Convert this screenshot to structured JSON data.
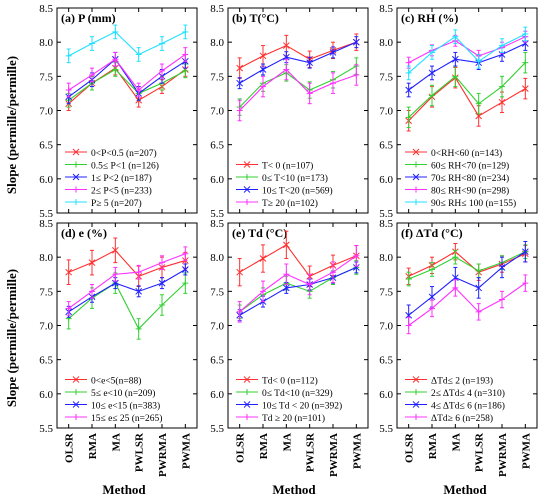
{
  "figure": {
    "ylabel": "Slope (permille/permille)",
    "xlabel": "Method"
  },
  "chart_data": [
    {
      "type": "line",
      "title": "(a) P (mm)",
      "categories": [
        "OLSR",
        "RMA",
        "MA",
        "PWLSR",
        "PWRMA",
        "PWMA"
      ],
      "ylim": [
        5.5,
        8.5
      ],
      "yticks": [
        "5.5",
        "6.0",
        "6.5",
        "7.0",
        "7.5",
        "8.0",
        "8.5"
      ],
      "legend_position": "bottom-right",
      "series": [
        {
          "name": "0<P<0.5 (n=207)",
          "color": "#ff3030",
          "values": [
            7.1,
            7.4,
            7.62,
            7.15,
            7.35,
            7.6
          ],
          "errors": [
            0.1,
            0.1,
            0.1,
            0.1,
            0.1,
            0.1
          ]
        },
        {
          "name": "0.5≤ P<1 (n=126)",
          "color": "#30d030",
          "values": [
            7.15,
            7.4,
            7.6,
            7.25,
            7.4,
            7.58
          ],
          "errors": [
            0.1,
            0.1,
            0.1,
            0.1,
            0.1,
            0.1
          ]
        },
        {
          "name": "1≤ P<2 (n=187)",
          "color": "#2020ff",
          "values": [
            7.2,
            7.45,
            7.75,
            7.25,
            7.5,
            7.72
          ],
          "errors": [
            0.1,
            0.1,
            0.1,
            0.1,
            0.1,
            0.1
          ]
        },
        {
          "name": "2≤ P<5 (n=233)",
          "color": "#ff30ff",
          "values": [
            7.3,
            7.52,
            7.75,
            7.3,
            7.58,
            7.82
          ],
          "errors": [
            0.1,
            0.1,
            0.1,
            0.1,
            0.1,
            0.1
          ]
        },
        {
          "name": "P≥ 5 (n=207)",
          "color": "#20e0ff",
          "values": [
            7.8,
            7.98,
            8.15,
            7.82,
            7.98,
            8.15
          ],
          "errors": [
            0.1,
            0.1,
            0.1,
            0.1,
            0.1,
            0.1
          ]
        }
      ]
    },
    {
      "type": "line",
      "title": "(b) T(°C)",
      "categories": [
        "OLSR",
        "RMA",
        "MA",
        "PWLSR",
        "PWRMA",
        "PWMA"
      ],
      "ylim": [
        5.5,
        8.5
      ],
      "yticks": [
        "5.5",
        "6.0",
        "6.5",
        "7.0",
        "7.5",
        "8.0",
        "8.5"
      ],
      "legend_position": "bottom-right",
      "series": [
        {
          "name": "T< 0 (n=107)",
          "color": "#ff3030",
          "values": [
            7.62,
            7.8,
            7.95,
            7.75,
            7.88,
            8.0
          ],
          "errors": [
            0.15,
            0.15,
            0.15,
            0.12,
            0.12,
            0.12
          ]
        },
        {
          "name": "0≤ T<10 (n=173)",
          "color": "#30d030",
          "values": [
            7.05,
            7.4,
            7.55,
            7.3,
            7.45,
            7.65
          ],
          "errors": [
            0.12,
            0.12,
            0.12,
            0.12,
            0.12,
            0.12
          ]
        },
        {
          "name": "10≤ T<20 (n=569)",
          "color": "#2020ff",
          "values": [
            7.4,
            7.6,
            7.78,
            7.7,
            7.85,
            8.0
          ],
          "errors": [
            0.08,
            0.08,
            0.08,
            0.08,
            0.08,
            0.08
          ]
        },
        {
          "name": "T≥ 20 (n=102)",
          "color": "#ff30ff",
          "values": [
            7.0,
            7.35,
            7.6,
            7.25,
            7.4,
            7.52
          ],
          "errors": [
            0.15,
            0.15,
            0.15,
            0.15,
            0.15,
            0.15
          ]
        }
      ]
    },
    {
      "type": "line",
      "title": "(c) RH (%)",
      "categories": [
        "OLSR",
        "RMA",
        "MA",
        "PWLSR",
        "PWRMA",
        "PWMA"
      ],
      "ylim": [
        5.5,
        8.5
      ],
      "yticks": [
        "5.5",
        "6.0",
        "6.5",
        "7.0",
        "7.5",
        "8.0",
        "8.5"
      ],
      "legend_position": "bottom-right",
      "series": [
        {
          "name": "0<RH<60 (n=143)",
          "color": "#ff3030",
          "values": [
            6.85,
            7.2,
            7.48,
            6.92,
            7.12,
            7.32
          ],
          "errors": [
            0.15,
            0.15,
            0.15,
            0.15,
            0.15,
            0.15
          ]
        },
        {
          "name": "60≤ RH<70 (n=129)",
          "color": "#30d030",
          "values": [
            6.9,
            7.22,
            7.5,
            7.1,
            7.35,
            7.7
          ],
          "errors": [
            0.15,
            0.15,
            0.15,
            0.15,
            0.15,
            0.15
          ]
        },
        {
          "name": "70≤ RH<80 (n=234)",
          "color": "#2020ff",
          "values": [
            7.3,
            7.55,
            7.75,
            7.7,
            7.82,
            7.98
          ],
          "errors": [
            0.1,
            0.1,
            0.1,
            0.1,
            0.1,
            0.1
          ]
        },
        {
          "name": "80≤ RH<90 (n=298)",
          "color": "#ff30ff",
          "values": [
            7.7,
            7.88,
            8.02,
            7.8,
            7.92,
            8.08
          ],
          "errors": [
            0.08,
            0.08,
            0.08,
            0.08,
            0.08,
            0.08
          ]
        },
        {
          "name": "90≤ RH≤ 100 (n=155)",
          "color": "#20e0ff",
          "values": [
            7.55,
            7.85,
            8.08,
            7.72,
            7.95,
            8.12
          ],
          "errors": [
            0.1,
            0.1,
            0.1,
            0.1,
            0.1,
            0.1
          ]
        }
      ]
    },
    {
      "type": "line",
      "title": "(d) e (%)",
      "categories": [
        "OLSR",
        "RMA",
        "MA",
        "PWLSR",
        "PWRMA",
        "PWMA"
      ],
      "ylim": [
        5.5,
        8.5
      ],
      "yticks": [
        "5.5",
        "6.0",
        "6.5",
        "7.0",
        "7.5",
        "8.0",
        "8.5"
      ],
      "legend_position": "bottom-right",
      "series": [
        {
          "name": "0<e<5(n=88)",
          "color": "#ff3030",
          "values": [
            7.78,
            7.92,
            8.1,
            7.72,
            7.85,
            7.95
          ],
          "errors": [
            0.18,
            0.18,
            0.18,
            0.15,
            0.15,
            0.12
          ]
        },
        {
          "name": "5≤ e<10 (n=209)",
          "color": "#30d030",
          "values": [
            7.1,
            7.4,
            7.62,
            6.95,
            7.3,
            7.62
          ],
          "errors": [
            0.15,
            0.15,
            0.15,
            0.15,
            0.15,
            0.15
          ]
        },
        {
          "name": "10≤ e<15 (n=383)",
          "color": "#2020ff",
          "values": [
            7.2,
            7.42,
            7.62,
            7.5,
            7.62,
            7.82
          ],
          "errors": [
            0.08,
            0.08,
            0.08,
            0.08,
            0.08,
            0.08
          ]
        },
        {
          "name": "15≤ e≤ 25 (n=265)",
          "color": "#ff30ff",
          "values": [
            7.25,
            7.5,
            7.75,
            7.78,
            7.92,
            8.05
          ],
          "errors": [
            0.1,
            0.1,
            0.1,
            0.1,
            0.1,
            0.1
          ]
        }
      ]
    },
    {
      "type": "line",
      "title": "(e) Td (°C)",
      "categories": [
        "OLSR",
        "RMA",
        "MA",
        "PWLSR",
        "PWRMA",
        "PWMA"
      ],
      "ylim": [
        5.5,
        8.5
      ],
      "yticks": [
        "5.5",
        "6.0",
        "6.5",
        "7.0",
        "7.5",
        "8.0",
        "8.5"
      ],
      "legend_position": "bottom-right",
      "series": [
        {
          "name": "Td< 0 (n=112)",
          "color": "#ff3030",
          "values": [
            7.78,
            7.98,
            8.18,
            7.72,
            7.88,
            8.02
          ],
          "errors": [
            0.2,
            0.2,
            0.2,
            0.15,
            0.15,
            0.15
          ]
        },
        {
          "name": "0≤ Td<10 (n=329)",
          "color": "#30d030",
          "values": [
            7.2,
            7.45,
            7.62,
            7.5,
            7.7,
            7.85
          ],
          "errors": [
            0.1,
            0.1,
            0.1,
            0.1,
            0.1,
            0.1
          ]
        },
        {
          "name": "10≤ Td < 20 (n=392)",
          "color": "#2020ff",
          "values": [
            7.15,
            7.35,
            7.55,
            7.6,
            7.7,
            7.85
          ],
          "errors": [
            0.08,
            0.08,
            0.08,
            0.08,
            0.08,
            0.08
          ]
        },
        {
          "name": "Td ≥ 20 (n=101)",
          "color": "#ff30ff",
          "values": [
            7.2,
            7.5,
            7.75,
            7.6,
            7.78,
            8.02
          ],
          "errors": [
            0.15,
            0.15,
            0.15,
            0.15,
            0.15,
            0.15
          ]
        }
      ]
    },
    {
      "type": "line",
      "title": "(f) ΔTd (°C)",
      "categories": [
        "OLSR",
        "RMA",
        "MA",
        "PWLSR",
        "PWRMA",
        "PWMA"
      ],
      "ylim": [
        5.5,
        8.5
      ],
      "yticks": [
        "5.5",
        "6.0",
        "6.5",
        "7.0",
        "7.5",
        "8.0",
        "8.5"
      ],
      "legend_position": "bottom-right",
      "series": [
        {
          "name": "ΔTd≤ 2 (n=193)",
          "color": "#ff3030",
          "values": [
            7.72,
            7.88,
            8.08,
            7.78,
            7.9,
            8.05
          ],
          "errors": [
            0.12,
            0.12,
            0.12,
            0.12,
            0.12,
            0.12
          ]
        },
        {
          "name": "2≤ ΔTd≤ 4 (n=310)",
          "color": "#30d030",
          "values": [
            7.68,
            7.82,
            8.0,
            7.8,
            7.92,
            8.08
          ],
          "errors": [
            0.1,
            0.1,
            0.1,
            0.1,
            0.1,
            0.1
          ]
        },
        {
          "name": "4≤ ΔTd≤ 6 (n=186)",
          "color": "#2020ff",
          "values": [
            7.15,
            7.42,
            7.7,
            7.55,
            7.85,
            8.08
          ],
          "errors": [
            0.15,
            0.15,
            0.15,
            0.15,
            0.15,
            0.15
          ]
        },
        {
          "name": "ΔTd≥ 6 (n=258)",
          "color": "#ff30ff",
          "values": [
            7.0,
            7.25,
            7.55,
            7.2,
            7.38,
            7.62
          ],
          "errors": [
            0.12,
            0.12,
            0.12,
            0.12,
            0.12,
            0.12
          ]
        }
      ]
    }
  ]
}
